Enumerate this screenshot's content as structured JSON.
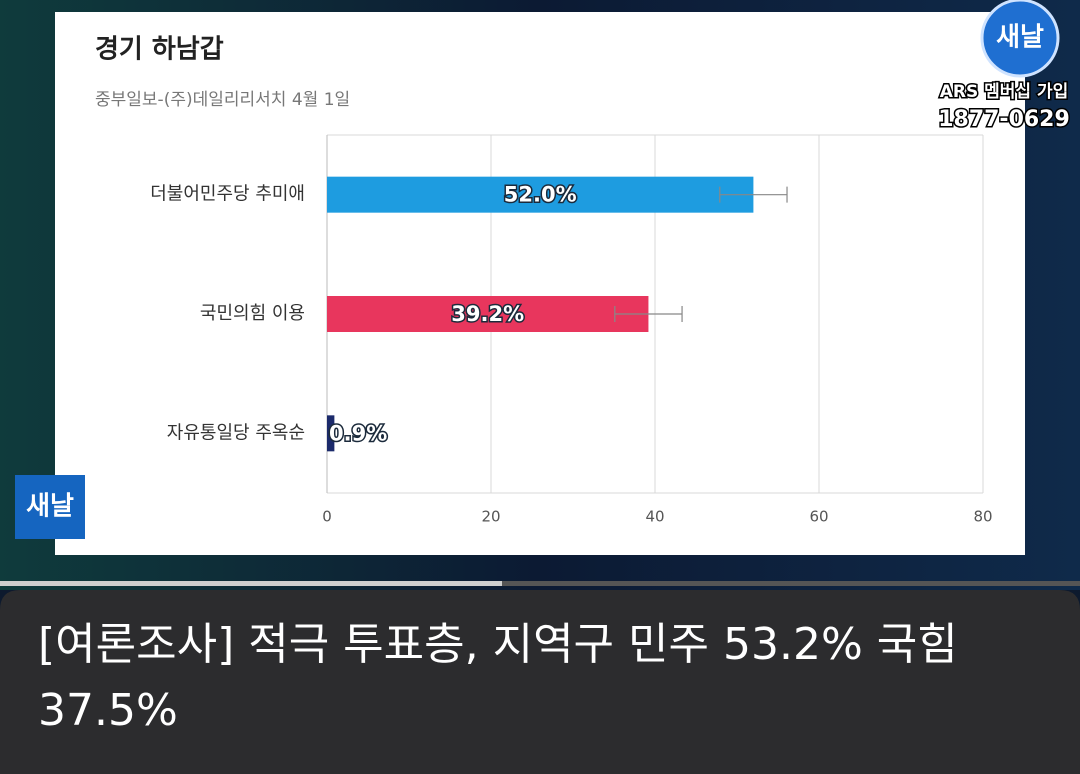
{
  "channel_logo": "새날",
  "ars_label": "ARS 멤버십 가입",
  "ars_number": "1877-0629",
  "headline": "[여론조사] 적극 투표층, 지역구 민주 53.2% 국힘 37.5%",
  "chart_data": {
    "type": "bar",
    "orientation": "horizontal",
    "title": "경기 하남갑",
    "subtitle": "중부일보-(주)데일리리서치 4월 1일",
    "categories": [
      "더불어민주당 추미애",
      "국민의힘 이용",
      "자유통일당 주옥순"
    ],
    "values": [
      52.0,
      39.2,
      0.9
    ],
    "value_labels": [
      "52.0%",
      "39.2%",
      "0.9%"
    ],
    "errors": [
      4.1,
      4.1,
      null
    ],
    "colors": [
      "#1e9ce0",
      "#e8365d",
      "#1b2a6b"
    ],
    "xlim": [
      0,
      80
    ],
    "xticks": [
      0,
      20,
      40,
      60,
      80
    ],
    "grid": true
  }
}
